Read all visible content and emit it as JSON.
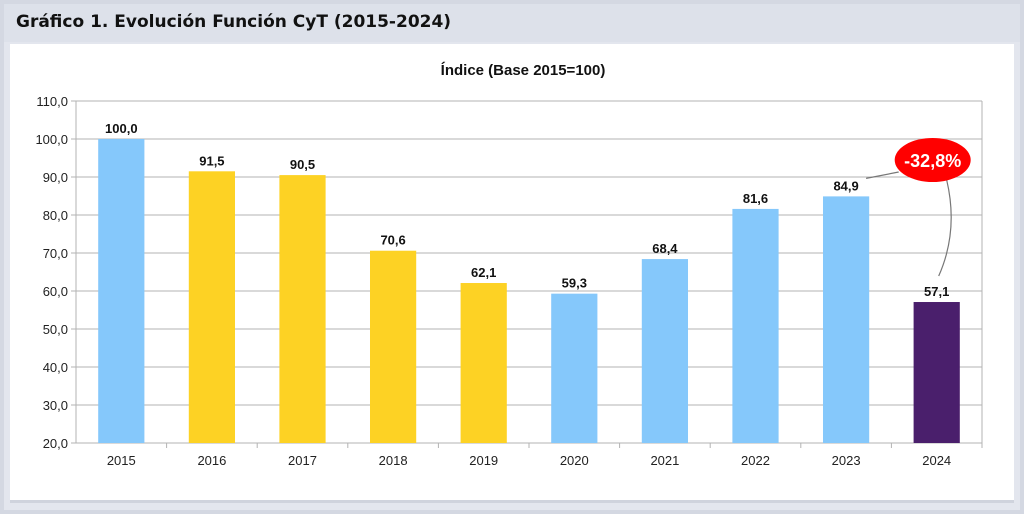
{
  "header": {
    "title": "Gráfico 1. Evolución Función CyT (2015-2024)"
  },
  "chart_data": {
    "type": "bar",
    "title": "Índice (Base 2015=100)",
    "xlabel": "",
    "ylabel": "",
    "categories": [
      "2015",
      "2016",
      "2017",
      "2018",
      "2019",
      "2020",
      "2021",
      "2022",
      "2023",
      "2024"
    ],
    "values": [
      100.0,
      91.5,
      90.5,
      70.6,
      62.1,
      59.3,
      68.4,
      81.6,
      84.9,
      57.1
    ],
    "value_labels": [
      "100,0",
      "91,5",
      "90,5",
      "70,6",
      "62,1",
      "59,3",
      "68,4",
      "81,6",
      "84,9",
      "57,1"
    ],
    "bar_colors": [
      "#85c8fb",
      "#fdd224",
      "#fdd224",
      "#fdd224",
      "#fdd224",
      "#85c8fb",
      "#85c8fb",
      "#85c8fb",
      "#85c8fb",
      "#4a1f6c"
    ],
    "ylim": [
      20,
      110
    ],
    "yticks": [
      20,
      30,
      40,
      50,
      60,
      70,
      80,
      90,
      100,
      110
    ],
    "ytick_labels": [
      "20,0",
      "30,0",
      "40,0",
      "50,0",
      "60,0",
      "70,0",
      "80,0",
      "90,0",
      "100,0",
      "110,0"
    ],
    "grid": true,
    "legend": "none",
    "annotation": {
      "text": "-32,8%",
      "color": "#ff0000",
      "from_category": "2023",
      "to_category": "2024"
    }
  }
}
